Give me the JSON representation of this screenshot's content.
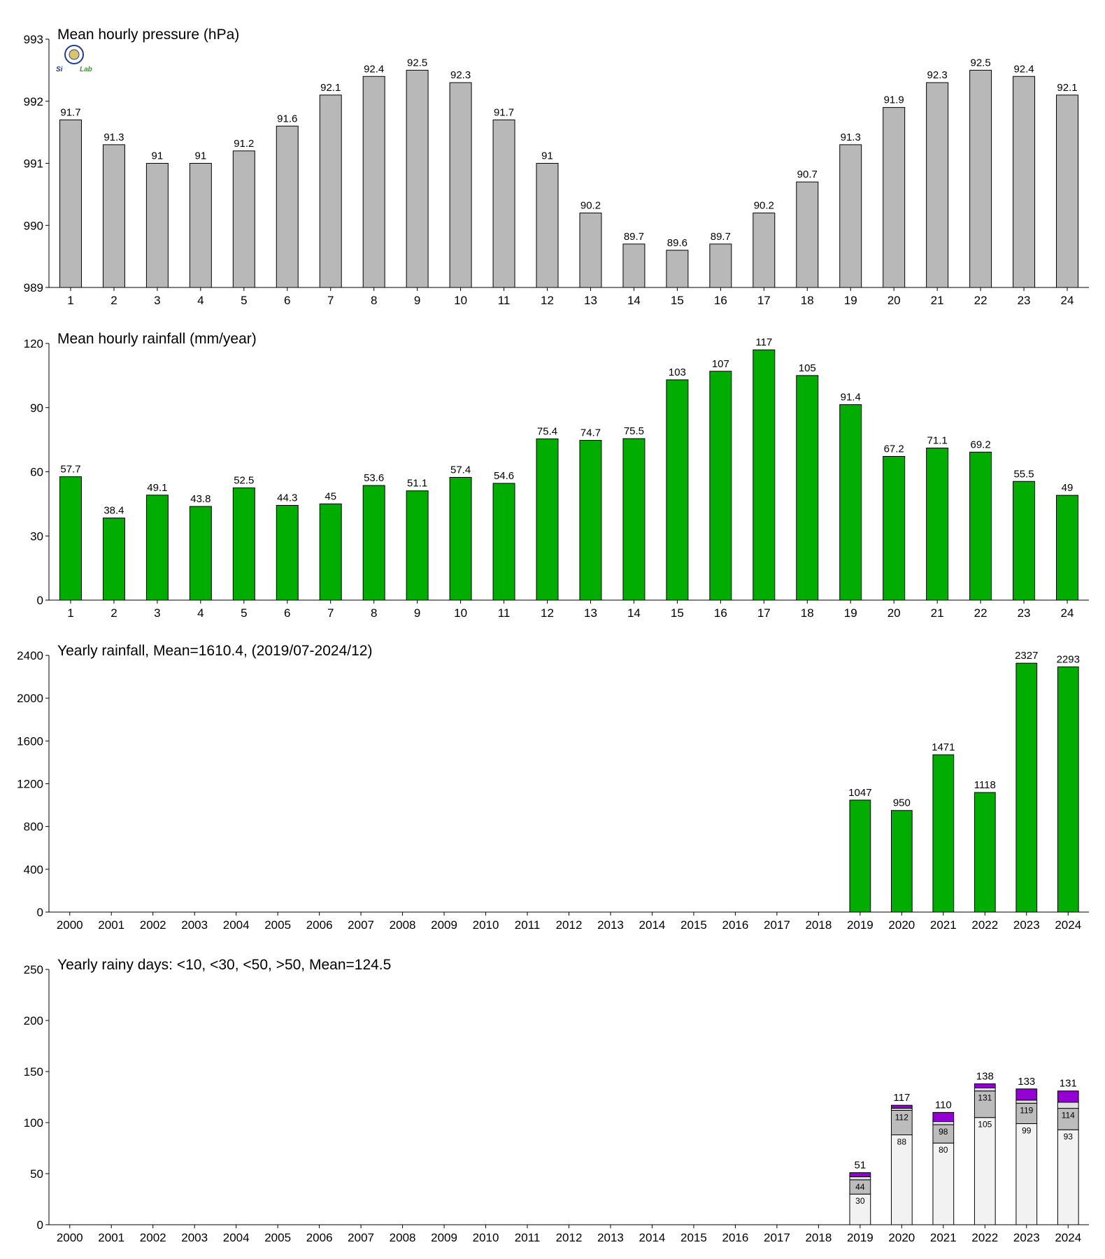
{
  "logo": {
    "text_left": "Si",
    "text_right": "Lab",
    "color_left": "#1a3a9a",
    "color_right": "#2aa02a",
    "seal_color": "#1f3f8f"
  },
  "chart_data": [
    {
      "type": "bar",
      "title": "Mean hourly pressure (hPa)",
      "categories": [
        "1",
        "2",
        "3",
        "4",
        "5",
        "6",
        "7",
        "8",
        "9",
        "10",
        "11",
        "12",
        "13",
        "14",
        "15",
        "16",
        "17",
        "18",
        "19",
        "20",
        "21",
        "22",
        "23",
        "24"
      ],
      "values": [
        991.7,
        991.3,
        991.0,
        991.0,
        991.2,
        991.6,
        992.1,
        992.4,
        992.5,
        992.3,
        991.7,
        991.0,
        990.2,
        989.7,
        989.6,
        989.7,
        990.2,
        990.7,
        991.3,
        991.9,
        992.3,
        992.5,
        992.4,
        992.1
      ],
      "value_labels": [
        "91.7",
        "91.3",
        "91",
        "91",
        "91.2",
        "91.6",
        "92.1",
        "92.4",
        "92.5",
        "92.3",
        "91.7",
        "91",
        "90.2",
        "89.7",
        "89.6",
        "89.7",
        "90.2",
        "90.7",
        "91.3",
        "91.9",
        "92.3",
        "92.5",
        "92.4",
        "92.1"
      ],
      "ylim": [
        989,
        993
      ],
      "yticks": [
        989,
        990,
        991,
        992,
        993
      ],
      "color": "#b8b8b8",
      "grid": false
    },
    {
      "type": "bar",
      "title": "Mean hourly rainfall (mm/year)",
      "categories": [
        "1",
        "2",
        "3",
        "4",
        "5",
        "6",
        "7",
        "8",
        "9",
        "10",
        "11",
        "12",
        "13",
        "14",
        "15",
        "16",
        "17",
        "18",
        "19",
        "20",
        "21",
        "22",
        "23",
        "24"
      ],
      "values": [
        57.7,
        38.4,
        49.1,
        43.8,
        52.5,
        44.3,
        45.0,
        53.6,
        51.1,
        57.4,
        54.6,
        75.4,
        74.7,
        75.5,
        103,
        107,
        117,
        105,
        91.4,
        67.2,
        71.1,
        69.2,
        55.5,
        49.0
      ],
      "value_labels": [
        "57.7",
        "38.4",
        "49.1",
        "43.8",
        "52.5",
        "44.3",
        "45",
        "53.6",
        "51.1",
        "57.4",
        "54.6",
        "75.4",
        "74.7",
        "75.5",
        "103",
        "107",
        "117",
        "105",
        "91.4",
        "67.2",
        "71.1",
        "69.2",
        "55.5",
        "49"
      ],
      "ylim": [
        0,
        120
      ],
      "yticks": [
        0,
        30,
        60,
        90,
        120
      ],
      "color": "#00ad00",
      "grid": false
    },
    {
      "type": "bar",
      "title": "Yearly rainfall, Mean=1610.4, (2019/07-2024/12)",
      "categories": [
        "2000",
        "2001",
        "2002",
        "2003",
        "2004",
        "2005",
        "2006",
        "2007",
        "2008",
        "2009",
        "2010",
        "2011",
        "2012",
        "2013",
        "2014",
        "2015",
        "2016",
        "2017",
        "2018",
        "2019",
        "2020",
        "2021",
        "2022",
        "2023",
        "2024"
      ],
      "values": [
        null,
        null,
        null,
        null,
        null,
        null,
        null,
        null,
        null,
        null,
        null,
        null,
        null,
        null,
        null,
        null,
        null,
        null,
        null,
        1047,
        950,
        1471,
        1118,
        2327,
        2293
      ],
      "value_labels": [
        "",
        "",
        "",
        "",
        "",
        "",
        "",
        "",
        "",
        "",
        "",
        "",
        "",
        "",
        "",
        "",
        "",
        "",
        "",
        "1047",
        "950",
        "1471",
        "1118",
        "2327",
        "2293"
      ],
      "ylim": [
        0,
        2400
      ],
      "yticks": [
        0,
        400,
        800,
        1200,
        1600,
        2000,
        2400
      ],
      "color": "#00ad00",
      "grid": false
    },
    {
      "type": "bar",
      "stacked": true,
      "title": "Yearly rainy days: <10, <30, <50, >50, Mean=124.5",
      "categories": [
        "2000",
        "2001",
        "2002",
        "2003",
        "2004",
        "2005",
        "2006",
        "2007",
        "2008",
        "2009",
        "2010",
        "2011",
        "2012",
        "2013",
        "2014",
        "2015",
        "2016",
        "2017",
        "2018",
        "2019",
        "2020",
        "2021",
        "2022",
        "2023",
        "2024"
      ],
      "cumulative": {
        "lt10": [
          null,
          null,
          null,
          null,
          null,
          null,
          null,
          null,
          null,
          null,
          null,
          null,
          null,
          null,
          null,
          null,
          null,
          null,
          null,
          30,
          88,
          80,
          105,
          99,
          93
        ],
        "lt30": [
          null,
          null,
          null,
          null,
          null,
          null,
          null,
          null,
          null,
          null,
          null,
          null,
          null,
          null,
          null,
          null,
          null,
          null,
          null,
          44,
          112,
          98,
          131,
          119,
          114
        ],
        "lt50": [
          null,
          null,
          null,
          null,
          null,
          null,
          null,
          null,
          null,
          null,
          null,
          null,
          null,
          null,
          null,
          null,
          null,
          null,
          null,
          47,
          114,
          101,
          134,
          122,
          120
        ],
        "total": [
          null,
          null,
          null,
          null,
          null,
          null,
          null,
          null,
          null,
          null,
          null,
          null,
          null,
          null,
          null,
          null,
          null,
          null,
          null,
          51,
          117,
          110,
          138,
          133,
          131
        ]
      },
      "inner_labels_lt10": [
        "",
        "",
        "",
        "",
        "",
        "",
        "",
        "",
        "",
        "",
        "",
        "",
        "",
        "",
        "",
        "",
        "",
        "",
        "",
        "30",
        "88",
        "80",
        "105",
        "99",
        "93"
      ],
      "inner_labels_lt30": [
        "",
        "",
        "",
        "",
        "",
        "",
        "",
        "",
        "",
        "",
        "",
        "",
        "",
        "",
        "",
        "",
        "",
        "",
        "",
        "44",
        "112",
        "98",
        "131",
        "119",
        "114"
      ],
      "total_labels": [
        "",
        "",
        "",
        "",
        "",
        "",
        "",
        "",
        "",
        "",
        "",
        "",
        "",
        "",
        "",
        "",
        "",
        "",
        "",
        "51",
        "117",
        "110",
        "138",
        "133",
        "131"
      ],
      "colors": {
        "lt10": "#f2f2f2",
        "lt30": "#bcbcbc",
        "lt50": "#e0e0e0",
        "gt50": "#9400d3"
      },
      "ylim": [
        0,
        250
      ],
      "yticks": [
        0,
        50,
        100,
        150,
        200,
        250
      ],
      "grid": false
    }
  ]
}
